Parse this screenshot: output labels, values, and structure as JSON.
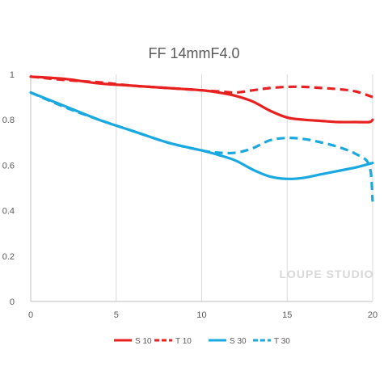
{
  "chart_data": {
    "type": "line",
    "title": "FF 14mmF4.0",
    "xlabel": "",
    "ylabel": "",
    "xlim": [
      0,
      20
    ],
    "ylim": [
      0,
      1
    ],
    "x_ticks": [
      0,
      5,
      10,
      15,
      20
    ],
    "y_ticks": [
      0,
      0.2,
      0.4,
      0.6,
      0.8,
      1
    ],
    "grid": "vertical",
    "legend_position": "bottom",
    "series": [
      {
        "name": "S 10",
        "color": "#e8201f",
        "style": "solid",
        "x": [
          0,
          2,
          4,
          6,
          8,
          10,
          11,
          12,
          13,
          14,
          15,
          16,
          17,
          18,
          19,
          19.8,
          20
        ],
        "y": [
          0.99,
          0.98,
          0.96,
          0.95,
          0.94,
          0.93,
          0.92,
          0.905,
          0.88,
          0.84,
          0.81,
          0.8,
          0.795,
          0.79,
          0.79,
          0.79,
          0.8
        ]
      },
      {
        "name": "T 10",
        "color": "#e8201f",
        "style": "dashed",
        "x": [
          0,
          2,
          4,
          6,
          8,
          10,
          11,
          12,
          13,
          14,
          15,
          16,
          17,
          18,
          19,
          20
        ],
        "y": [
          0.99,
          0.975,
          0.965,
          0.95,
          0.94,
          0.93,
          0.925,
          0.92,
          0.93,
          0.94,
          0.945,
          0.945,
          0.94,
          0.935,
          0.925,
          0.9
        ]
      },
      {
        "name": "S 30",
        "color": "#1aa8e0",
        "style": "solid",
        "x": [
          0,
          2,
          4,
          6,
          8,
          10,
          11,
          12,
          13,
          14,
          15,
          16,
          17,
          18,
          19,
          20
        ],
        "y": [
          0.92,
          0.86,
          0.8,
          0.75,
          0.7,
          0.665,
          0.645,
          0.62,
          0.58,
          0.55,
          0.54,
          0.545,
          0.56,
          0.575,
          0.59,
          0.61
        ]
      },
      {
        "name": "T 30",
        "color": "#1aa8e0",
        "style": "dashed",
        "x": [
          0,
          2,
          4,
          6,
          8,
          10,
          11,
          12,
          13,
          14,
          15,
          16,
          17,
          18,
          19,
          19.8,
          20
        ],
        "y": [
          0.92,
          0.855,
          0.8,
          0.75,
          0.7,
          0.665,
          0.655,
          0.655,
          0.675,
          0.71,
          0.72,
          0.715,
          0.7,
          0.68,
          0.65,
          0.6,
          0.44
        ]
      }
    ],
    "watermark": "LOUPE STUDIO"
  }
}
